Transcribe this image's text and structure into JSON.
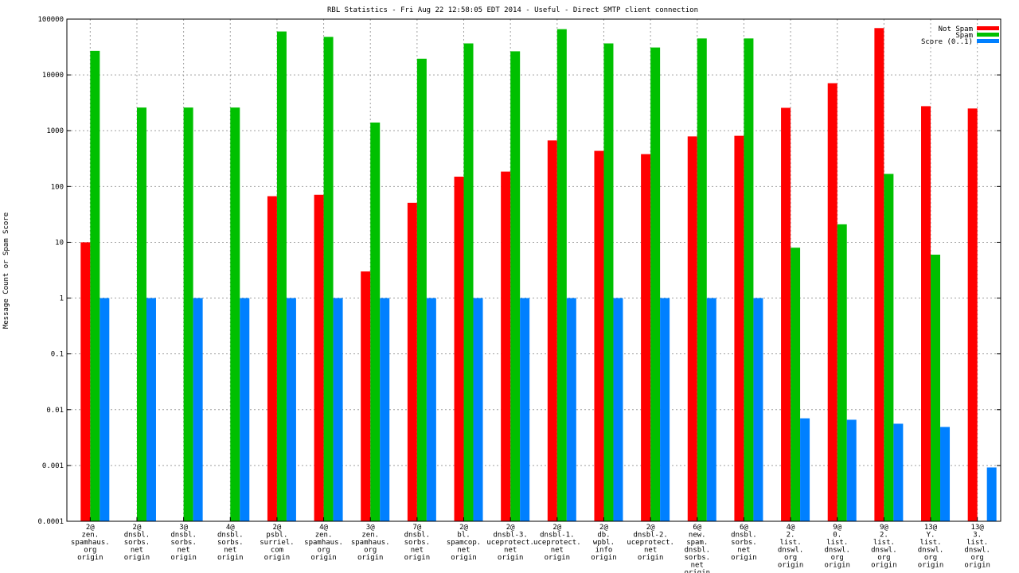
{
  "chart_data": {
    "type": "bar",
    "title": "RBL Statistics - Fri Aug 22 12:58:05 EDT 2014 - Useful - Direct SMTP client connection",
    "xlabel": "",
    "ylabel": "Message Count or Spam Score",
    "yscale": "log",
    "ylim": [
      0.0001,
      100000
    ],
    "yticks": [
      "100000",
      "10000",
      "1000",
      "100",
      "10",
      "1",
      "0.1",
      "0.01",
      "0.001",
      "0.0001"
    ],
    "grid": true,
    "legend_position": "top-right",
    "categories": [
      [
        "2@",
        "zen.",
        "spamhaus.",
        "org",
        "origin"
      ],
      [
        "2@",
        "dnsbl.",
        "sorbs.",
        "net",
        "origin"
      ],
      [
        "3@",
        "dnsbl.",
        "sorbs.",
        "net",
        "origin"
      ],
      [
        "4@",
        "dnsbl.",
        "sorbs.",
        "net",
        "origin"
      ],
      [
        "2@",
        "psbl.",
        "surriel.",
        "com",
        "origin"
      ],
      [
        "4@",
        "zen.",
        "spamhaus.",
        "org",
        "origin"
      ],
      [
        "3@",
        "zen.",
        "spamhaus.",
        "org",
        "origin"
      ],
      [
        "7@",
        "dnsbl.",
        "sorbs.",
        "net",
        "origin"
      ],
      [
        "2@",
        "bl.",
        "spamcop.",
        "net",
        "origin"
      ],
      [
        "2@",
        "dnsbl-3.",
        "uceprotect.",
        "net",
        "origin"
      ],
      [
        "2@",
        "dnsbl-1.",
        "uceprotect.",
        "net",
        "origin"
      ],
      [
        "2@",
        "db.",
        "wpbl.",
        "info",
        "origin"
      ],
      [
        "2@",
        "dnsbl-2.",
        "uceprotect.",
        "net",
        "origin"
      ],
      [
        "6@",
        "new.",
        "spam.",
        "dnsbl.",
        "sorbs.",
        "net",
        "origin"
      ],
      [
        "6@",
        "dnsbl.",
        "sorbs.",
        "net",
        "origin"
      ],
      [
        "4@",
        "2.",
        "list.",
        "dnswl.",
        "org",
        "origin"
      ],
      [
        "9@",
        "0.",
        "list.",
        "dnswl.",
        "org",
        "origin"
      ],
      [
        "9@",
        "2.",
        "list.",
        "dnswl.",
        "org",
        "origin"
      ],
      [
        "13@",
        "Y.",
        "list.",
        "dnswl.",
        "org",
        "origin"
      ],
      [
        "13@",
        "3.",
        "list.",
        "dnswl.",
        "org",
        "origin"
      ]
    ],
    "series": [
      {
        "name": "Not Spam",
        "color": "#ff0000",
        "values": [
          10,
          null,
          null,
          null,
          67,
          71,
          3,
          51,
          150,
          185,
          670,
          435,
          380,
          790,
          810,
          2570,
          7100,
          69000,
          2750,
          2500
        ]
      },
      {
        "name": "Spam",
        "color": "#00c000",
        "values": [
          27000,
          2600,
          2600,
          2600,
          60000,
          48000,
          1400,
          19500,
          36700,
          26500,
          66000,
          36700,
          31000,
          45000,
          45000,
          8,
          21,
          168,
          6,
          null
        ]
      },
      {
        "name": "Score (0..1)",
        "color": "#0080ff",
        "values": [
          1,
          1,
          1,
          1,
          1,
          1,
          1,
          1,
          1,
          1,
          1,
          1,
          1,
          1,
          1,
          0.007,
          0.0066,
          0.0056,
          0.0049,
          0.00092
        ]
      }
    ]
  }
}
